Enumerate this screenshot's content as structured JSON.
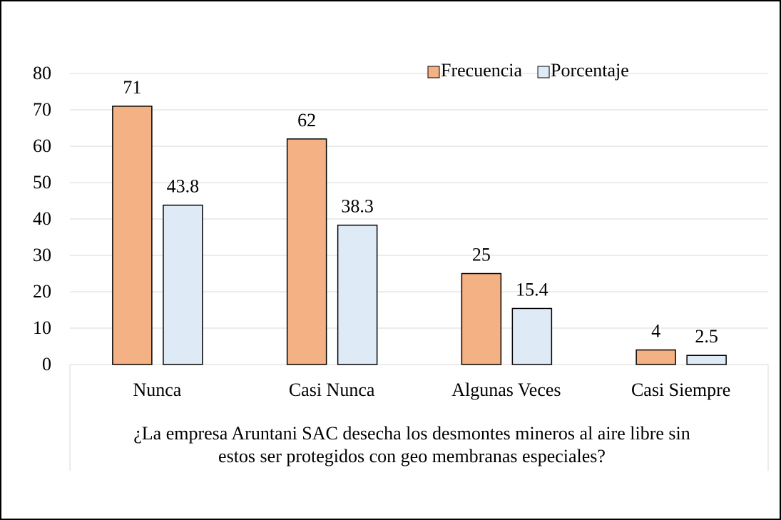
{
  "chart_data": {
    "type": "bar",
    "categories": [
      "Nunca",
      "Casi Nunca",
      "Algunas Veces",
      "Casi Siempre"
    ],
    "series": [
      {
        "name": "Frecuencia",
        "color": "#f4b183",
        "values": [
          71,
          62,
          25,
          4
        ]
      },
      {
        "name": "Porcentaje",
        "color": "#deebf7",
        "values": [
          43.8,
          38.3,
          15.4,
          2.5
        ]
      }
    ],
    "x_label": [
      "¿La empresa Aruntani SAC desecha los desmontes mineros al aire libre sin",
      "estos ser protegidos con geo membranas especiales?"
    ],
    "ylim": [
      0,
      80
    ],
    "yticks": [
      0,
      10,
      20,
      30,
      40,
      50,
      60,
      70,
      80
    ],
    "grid": true,
    "legend": "top-right"
  }
}
